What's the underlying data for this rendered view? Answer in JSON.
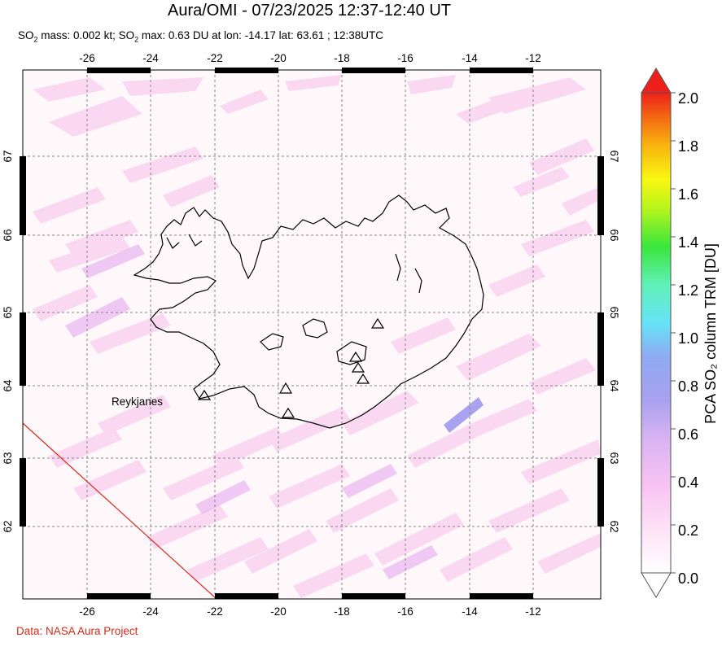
{
  "header": {
    "title": "Aura/OMI - 07/23/2025 12:37-12:40 UT",
    "subtitle": "SO₂ mass: 0.002 kt; SO₂ max: 0.63 DU at lon: -14.17 lat: 63.61 ; 12:38UTC"
  },
  "map": {
    "lon_ticks": [
      "-26",
      "-24",
      "-22",
      "-20",
      "-18",
      "-16",
      "-14",
      "-12"
    ],
    "lat_ticks": [
      "67",
      "66",
      "65",
      "64",
      "63",
      "62"
    ],
    "place_label": "Reykjanes",
    "volcano_markers": 7
  },
  "colorbar": {
    "ticks": [
      "2.0",
      "1.8",
      "1.6",
      "1.4",
      "1.2",
      "1.0",
      "0.8",
      "0.6",
      "0.4",
      "0.2",
      "0.0"
    ],
    "label": "PCA SO₂ column TRM [DU]",
    "range": [
      0.0,
      2.0
    ],
    "colors": [
      "#ffffff",
      "#fbd3f2",
      "#eab8f2",
      "#b7a3ef",
      "#8f9cf0",
      "#65d6f6",
      "#66f0d2",
      "#3ae63c",
      "#c6f81a",
      "#f9f710",
      "#f8b40f",
      "#f46712",
      "#ef1f1b"
    ]
  },
  "footer": {
    "credit": "Data: NASA Aura Project"
  }
}
